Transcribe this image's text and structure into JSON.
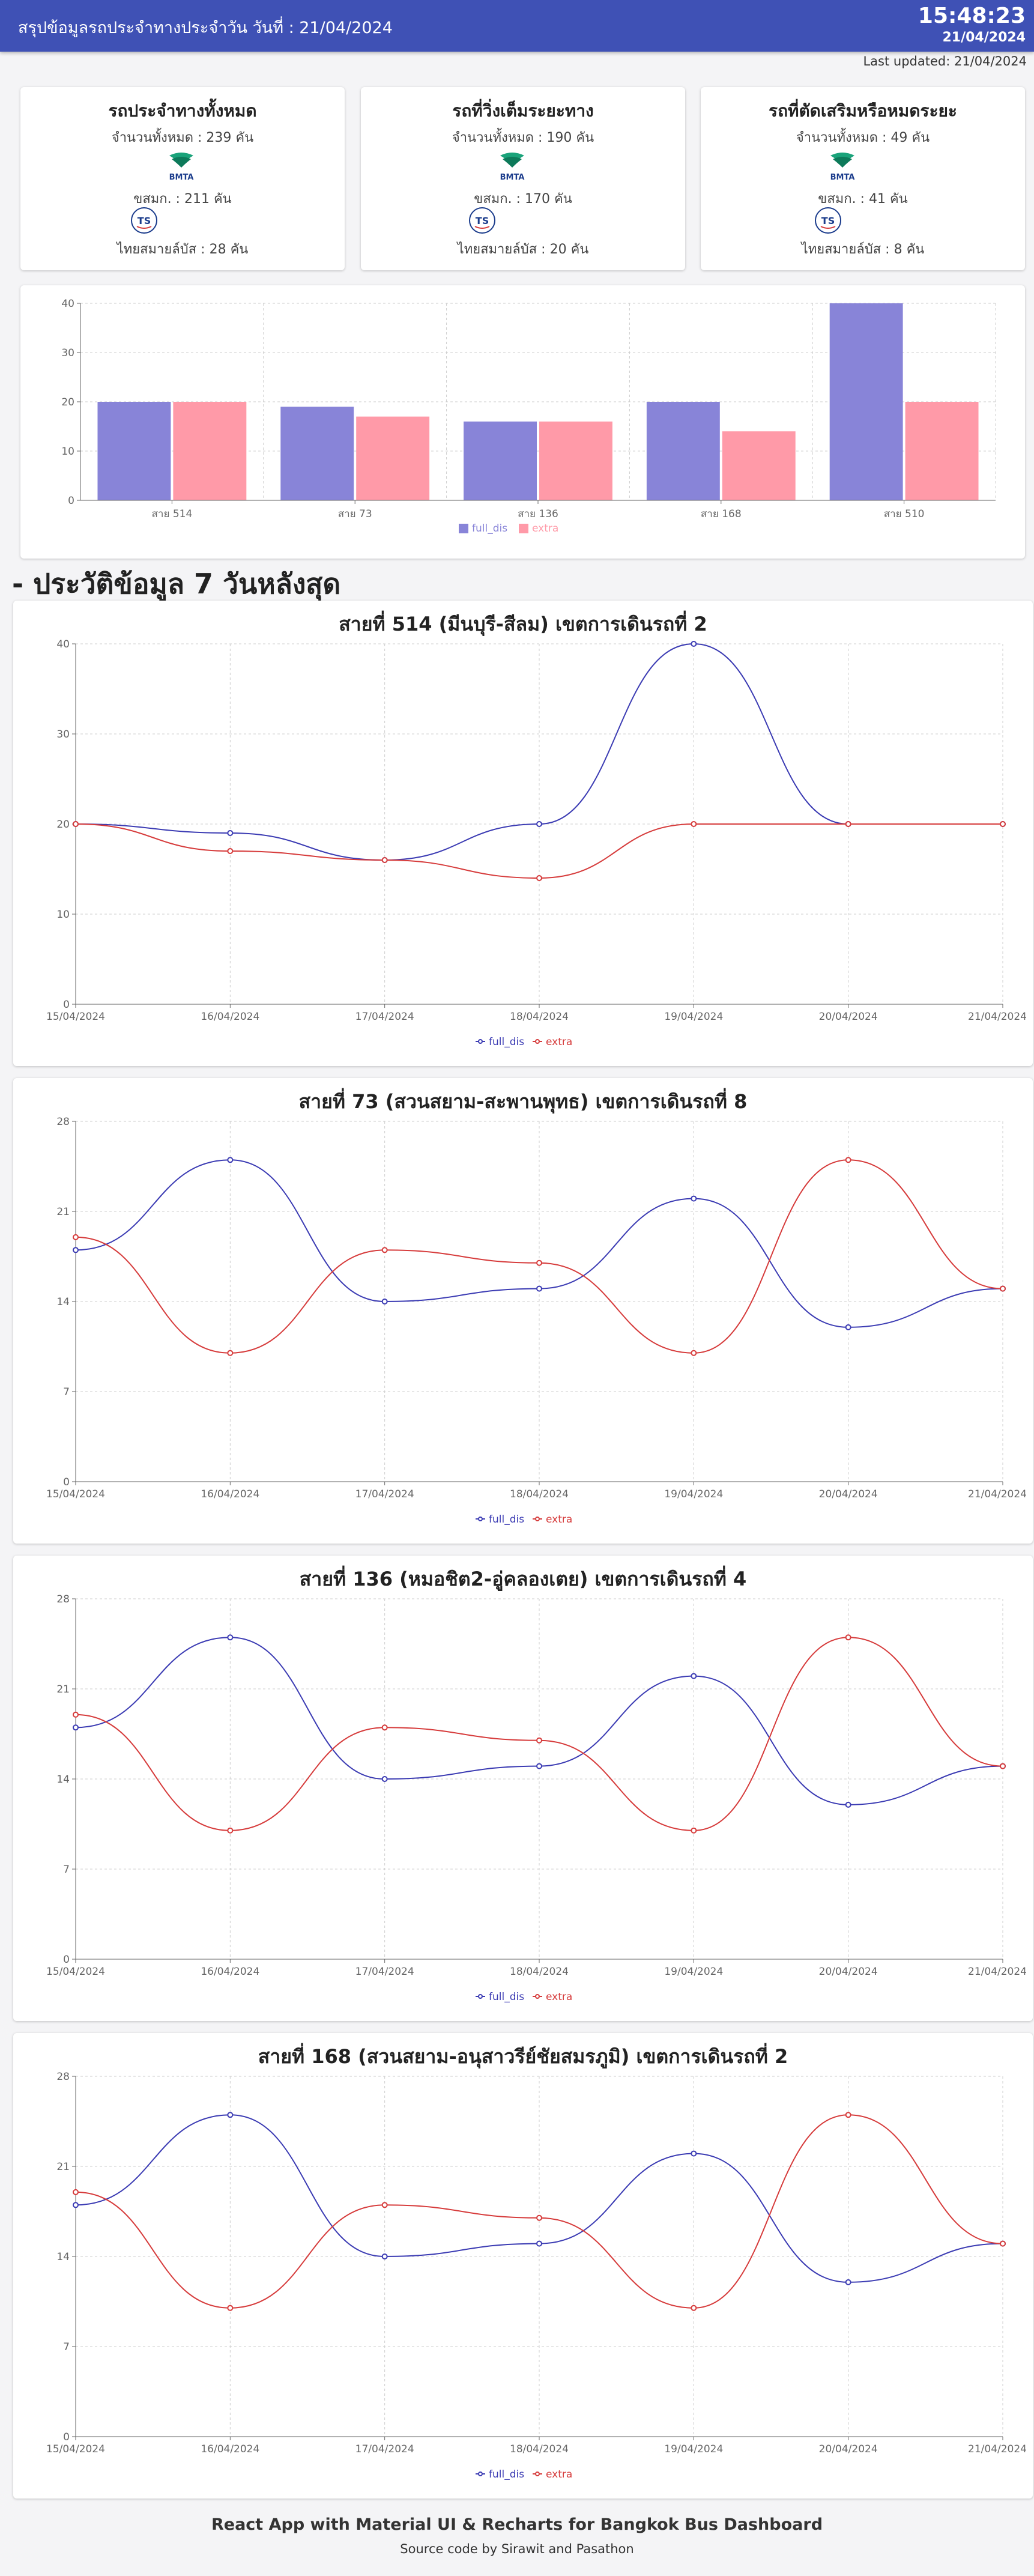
{
  "header": {
    "title": "สรุปข้อมูลรถประจำทางประจำวัน วันที่ : 21/04/2024",
    "clock": "15:48:23",
    "date": "21/04/2024",
    "last_updated": "Last updated: 21/04/2024"
  },
  "summary_cards": [
    {
      "title": "รถประจำทางทั้งหมด",
      "total": "จำนวนทั้งหมด : 239 คัน",
      "bmta": "ขสมก. : 211 คัน",
      "tsb": "ไทยสมายล์บัส : 28 คัน"
    },
    {
      "title": "รถที่วิ่งเต็มระยะทาง",
      "total": "จำนวนทั้งหมด : 190 คัน",
      "bmta": "ขสมก. : 170 คัน",
      "tsb": "ไทยสมายล์บัส : 20 คัน"
    },
    {
      "title": "รถที่ตัดเสริมหรือหมดระยะ",
      "total": "จำนวนทั้งหมด : 49 คัน",
      "bmta": "ขสมก. : 41 คัน",
      "tsb": "ไทยสมายล์บัส : 8 คัน"
    }
  ],
  "logos": {
    "bmta_text": "BMTA",
    "tsb_text": "TS"
  },
  "colors": {
    "header": "#3f51b5",
    "full_dis_bar": "#8884d8",
    "extra_bar": "#ff9aa8",
    "full_dis_line": "#3b3bb3",
    "extra_line": "#d63b3b"
  },
  "section_title": "- ประวัติข้อมูล 7 วันหลังสุด",
  "line_titles": [
    "สายที่ 514 (มีนบุรี-สีลม) เขตการเดินรถที่ 2",
    "สายที่ 73 (สวนสยาม-สะพานพุทธ) เขตการเดินรถที่ 8",
    "สายที่ 136 (หมอชิต2-อู่คลองเตย) เขตการเดินรถที่ 4",
    "สายที่ 168 (สวนสยาม-อนุสาวรีย์ชัยสมรภูมิ) เขตการเดินรถที่ 2"
  ],
  "chart_data": [
    {
      "type": "bar",
      "categories": [
        "สาย 514",
        "สาย 73",
        "สาย 136",
        "สาย 168",
        "สาย 510"
      ],
      "series": [
        {
          "name": "full_dis",
          "values": [
            20,
            19,
            16,
            20,
            40
          ]
        },
        {
          "name": "extra",
          "values": [
            20,
            17,
            16,
            14,
            20
          ]
        }
      ],
      "ylim": [
        0,
        40
      ],
      "yticks": [
        "0",
        "10",
        "20",
        "30",
        "40"
      ],
      "legend": "bottom",
      "grid": true
    },
    {
      "type": "line",
      "title": "สายที่ 514 (มีนบุรี-สีลม) เขตการเดินรถที่ 2",
      "x": [
        "15/04/2024",
        "16/04/2024",
        "17/04/2024",
        "18/04/2024",
        "19/04/2024",
        "20/04/2024",
        "21/04/2024"
      ],
      "series": [
        {
          "name": "full_dis",
          "values": [
            20,
            19,
            16,
            20,
            40,
            20,
            20
          ]
        },
        {
          "name": "extra",
          "values": [
            20,
            17,
            16,
            14,
            20,
            20,
            20
          ]
        }
      ],
      "ylim": [
        0,
        40
      ],
      "yticks": [
        "0",
        "10",
        "20",
        "30",
        "40"
      ],
      "legend": "bottom",
      "grid": true
    },
    {
      "type": "line",
      "title": "สายที่ 73 (สวนสยาม-สะพานพุทธ) เขตการเดินรถที่ 8",
      "x": [
        "15/04/2024",
        "16/04/2024",
        "17/04/2024",
        "18/04/2024",
        "19/04/2024",
        "20/04/2024",
        "21/04/2024"
      ],
      "series": [
        {
          "name": "full_dis",
          "values": [
            18,
            25,
            14,
            15,
            22,
            12,
            15
          ]
        },
        {
          "name": "extra",
          "values": [
            19,
            10,
            18,
            17,
            10,
            25,
            15
          ]
        }
      ],
      "ylim": [
        0,
        28
      ],
      "yticks": [
        "0",
        "7",
        "14",
        "21",
        "28"
      ],
      "legend": "bottom",
      "grid": true
    },
    {
      "type": "line",
      "title": "สายที่ 136 (หมอชิต2-อู่คลองเตย) เขตการเดินรถที่ 4",
      "x": [
        "15/04/2024",
        "16/04/2024",
        "17/04/2024",
        "18/04/2024",
        "19/04/2024",
        "20/04/2024",
        "21/04/2024"
      ],
      "series": [
        {
          "name": "full_dis",
          "values": [
            18,
            25,
            14,
            15,
            22,
            12,
            15
          ]
        },
        {
          "name": "extra",
          "values": [
            19,
            10,
            18,
            17,
            10,
            25,
            15
          ]
        }
      ],
      "ylim": [
        0,
        28
      ],
      "yticks": [
        "0",
        "7",
        "14",
        "21",
        "28"
      ],
      "legend": "bottom",
      "grid": true
    },
    {
      "type": "line",
      "title": "สายที่ 168 (สวนสยาม-อนุสาวรีย์ชัยสมรภูมิ) เขตการเดินรถที่ 2",
      "x": [
        "15/04/2024",
        "16/04/2024",
        "17/04/2024",
        "18/04/2024",
        "19/04/2024",
        "20/04/2024",
        "21/04/2024"
      ],
      "series": [
        {
          "name": "full_dis",
          "values": [
            18,
            25,
            14,
            15,
            22,
            12,
            15
          ]
        },
        {
          "name": "extra",
          "values": [
            19,
            10,
            18,
            17,
            10,
            25,
            15
          ]
        }
      ],
      "ylim": [
        0,
        28
      ],
      "yticks": [
        "0",
        "7",
        "14",
        "21",
        "28"
      ],
      "legend": "bottom",
      "grid": true
    }
  ],
  "footer": {
    "line1": "React App with Material UI & Recharts for Bangkok Bus Dashboard",
    "line2": "Source code by Sirawit and Pasathon"
  }
}
